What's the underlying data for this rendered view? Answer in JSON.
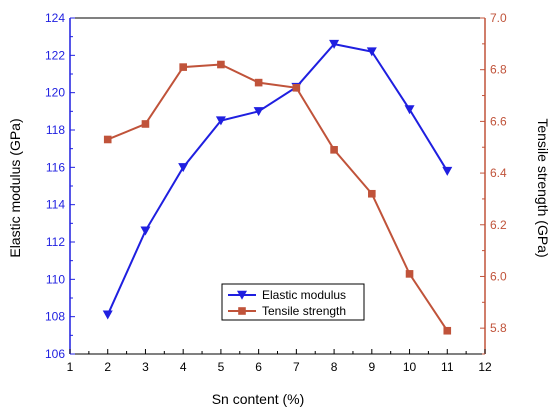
{
  "chart_data": {
    "type": "line",
    "title": "",
    "xlabel": "Sn content (%)",
    "ylabel_left": "Elastic modulus (GPa)",
    "ylabel_right": "Tensile strength (GPa)",
    "xlim": [
      1,
      12
    ],
    "xticks": [
      "1",
      "2",
      "3",
      "4",
      "5",
      "6",
      "7",
      "8",
      "9",
      "10",
      "11",
      "12"
    ],
    "ylim_left": [
      106,
      124
    ],
    "yticks_left": [
      "106",
      "108",
      "110",
      "112",
      "114",
      "116",
      "118",
      "120",
      "122",
      "124"
    ],
    "ylim_right": [
      5.7,
      7.0
    ],
    "yticks_right": [
      "5.8",
      "6.0",
      "6.2",
      "6.4",
      "6.6",
      "6.8",
      "7.0"
    ],
    "legend_position": "lower-center",
    "x": [
      2,
      3,
      4,
      5,
      6,
      7,
      8,
      9,
      10,
      11
    ],
    "series": [
      {
        "name": "Elastic modulus",
        "axis": "left",
        "color": "#1f1fe0",
        "marker": "triangle-down",
        "values": [
          108.1,
          112.6,
          116.0,
          118.5,
          119.0,
          120.3,
          122.6,
          122.2,
          119.1,
          115.8
        ]
      },
      {
        "name": "Tensile strength",
        "axis": "right",
        "color": "#c0533a",
        "marker": "square",
        "values": [
          6.53,
          6.59,
          6.81,
          6.82,
          6.75,
          6.73,
          6.49,
          6.32,
          6.01,
          5.79
        ]
      }
    ],
    "axis_colors": {
      "left": "#1f1fe0",
      "right": "#c0533a",
      "x": "#000000"
    }
  }
}
